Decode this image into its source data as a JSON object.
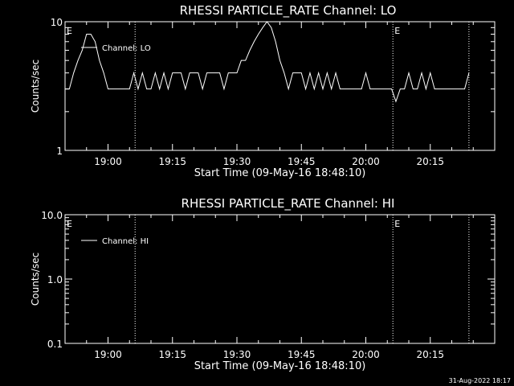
{
  "footer": {
    "timestamp": "31-Aug-2022 18:17"
  },
  "chart_data": [
    {
      "type": "line",
      "title": "RHESSI PARTICLE_RATE Channel: LO",
      "xlabel": "Start Time (09-May-16 18:48:10)",
      "ylabel": "Counts/sec",
      "yscale": "log",
      "ylim": [
        1,
        10
      ],
      "yticks": [
        {
          "v": 1,
          "label": "1"
        },
        {
          "v": 10,
          "label": "10"
        }
      ],
      "xlim": [
        -10,
        90
      ],
      "xticks": [
        {
          "v": 0,
          "label": "19:00"
        },
        {
          "v": 15,
          "label": "19:15"
        },
        {
          "v": 30,
          "label": "19:30"
        },
        {
          "v": 45,
          "label": "19:45"
        },
        {
          "v": 60,
          "label": "20:00"
        },
        {
          "v": 75,
          "label": "20:15"
        }
      ],
      "eclipse_lines": [
        {
          "x": 6.3,
          "label": ""
        },
        {
          "x": 66.3,
          "label": "E"
        },
        {
          "x": 84.0,
          "label": ""
        }
      ],
      "edge_marker": "E",
      "legend": "top-left",
      "series": [
        {
          "name": "Channel: LO",
          "x": [
            -10,
            -9,
            -8,
            -7,
            -6,
            -5,
            -4,
            -3,
            -2,
            -1,
            0,
            1,
            2,
            3,
            4,
            5,
            6,
            7,
            8,
            9,
            10,
            11,
            12,
            13,
            14,
            15,
            16,
            17,
            18,
            19,
            20,
            21,
            22,
            23,
            24,
            25,
            26,
            27,
            28,
            29,
            30,
            31,
            32,
            33,
            34,
            35,
            36,
            37,
            38,
            39,
            40,
            41,
            42,
            43,
            44,
            45,
            46,
            47,
            48,
            49,
            50,
            51,
            52,
            53,
            54,
            55,
            56,
            57,
            58,
            59,
            60,
            61,
            62,
            63,
            64,
            65,
            66,
            67,
            68,
            69,
            70,
            71,
            72,
            73,
            74,
            75,
            76,
            77,
            78,
            79,
            80,
            81,
            82,
            83,
            84
          ],
          "values": [
            3,
            3,
            4,
            5,
            6,
            8,
            8,
            7,
            5,
            4,
            3,
            3,
            3,
            3,
            3,
            3,
            4,
            3,
            4,
            3,
            3,
            4,
            3,
            4,
            3,
            4,
            4,
            4,
            3,
            4,
            4,
            4,
            3,
            4,
            4,
            4,
            4,
            3,
            4,
            4,
            4,
            5,
            5,
            6,
            7,
            8,
            9,
            10,
            9,
            7,
            5,
            4,
            3,
            4,
            4,
            4,
            3,
            4,
            3,
            4,
            3,
            4,
            3,
            4,
            3,
            3,
            3,
            3,
            3,
            3,
            4,
            3,
            3,
            3,
            3,
            3,
            3,
            2.4,
            3,
            3,
            4,
            3,
            3,
            4,
            3,
            4,
            3,
            3,
            3,
            3,
            3,
            3,
            3,
            3,
            4
          ]
        }
      ]
    },
    {
      "type": "line",
      "title": "RHESSI PARTICLE_RATE Channel: HI",
      "xlabel": "Start Time (09-May-16 18:48:10)",
      "ylabel": "Counts/sec",
      "yscale": "log",
      "ylim": [
        0.1,
        10
      ],
      "yticks": [
        {
          "v": 0.1,
          "label": "0.1"
        },
        {
          "v": 1,
          "label": "1.0"
        },
        {
          "v": 10,
          "label": "10.0"
        }
      ],
      "xlim": [
        -10,
        90
      ],
      "xticks": [
        {
          "v": 0,
          "label": "19:00"
        },
        {
          "v": 15,
          "label": "19:15"
        },
        {
          "v": 30,
          "label": "19:30"
        },
        {
          "v": 45,
          "label": "19:45"
        },
        {
          "v": 60,
          "label": "20:00"
        },
        {
          "v": 75,
          "label": "20:15"
        }
      ],
      "eclipse_lines": [
        {
          "x": 6.3,
          "label": ""
        },
        {
          "x": 66.3,
          "label": "E"
        },
        {
          "x": 84.0,
          "label": ""
        }
      ],
      "edge_marker": "E",
      "legend": "top-left",
      "series": [
        {
          "name": "Channel: HI",
          "x": [],
          "values": []
        }
      ]
    }
  ]
}
